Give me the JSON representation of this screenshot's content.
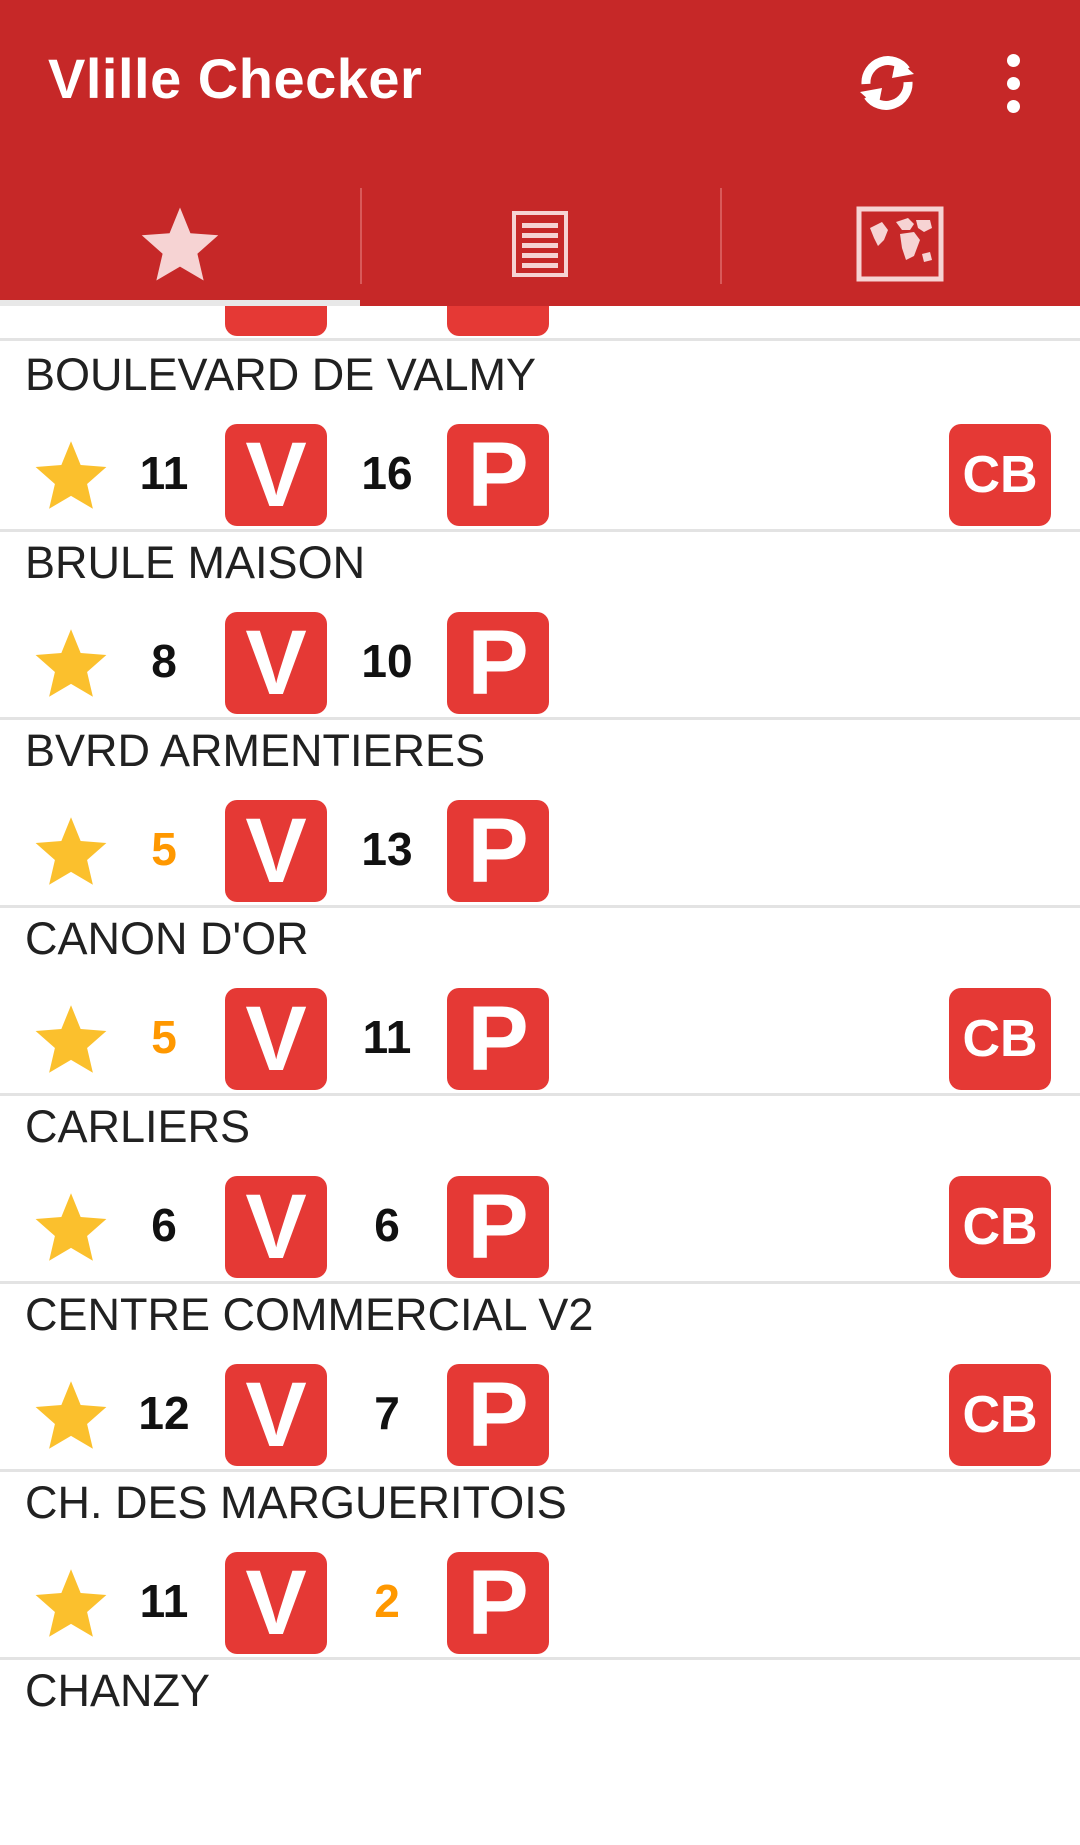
{
  "app": {
    "title": "Vlille Checker"
  },
  "toolbar": {
    "refresh_icon": "refresh-icon",
    "overflow_icon": "more-vert-icon"
  },
  "tabs": [
    {
      "icon": "star-icon",
      "selected": true
    },
    {
      "icon": "list-icon",
      "selected": false
    },
    {
      "icon": "map-icon",
      "selected": false
    }
  ],
  "colors": {
    "primary": "#c62828",
    "badge": "#e53935",
    "star": "#fbc02d",
    "low_count": "#ff9800"
  },
  "badges": {
    "bikes": "V",
    "places": "P",
    "card": "CB"
  },
  "stations": [
    {
      "name": "BOULEVARD DE VALMY",
      "bikes": "11",
      "places": "16",
      "bikes_low": false,
      "places_low": false,
      "cb": true
    },
    {
      "name": "BRULE MAISON",
      "bikes": "8",
      "places": "10",
      "bikes_low": false,
      "places_low": false,
      "cb": false
    },
    {
      "name": "BVRD ARMENTIERES",
      "bikes": "5",
      "places": "13",
      "bikes_low": true,
      "places_low": false,
      "cb": false
    },
    {
      "name": "CANON D'OR",
      "bikes": "5",
      "places": "11",
      "bikes_low": true,
      "places_low": false,
      "cb": true
    },
    {
      "name": "CARLIERS",
      "bikes": "6",
      "places": "6",
      "bikes_low": false,
      "places_low": false,
      "cb": true
    },
    {
      "name": "CENTRE COMMERCIAL V2",
      "bikes": "12",
      "places": "7",
      "bikes_low": false,
      "places_low": false,
      "cb": true
    },
    {
      "name": "CH. DES MARGUERITOIS",
      "bikes": "11",
      "places": "2",
      "bikes_low": false,
      "places_low": true,
      "cb": false
    },
    {
      "name": "CHANZY"
    }
  ]
}
